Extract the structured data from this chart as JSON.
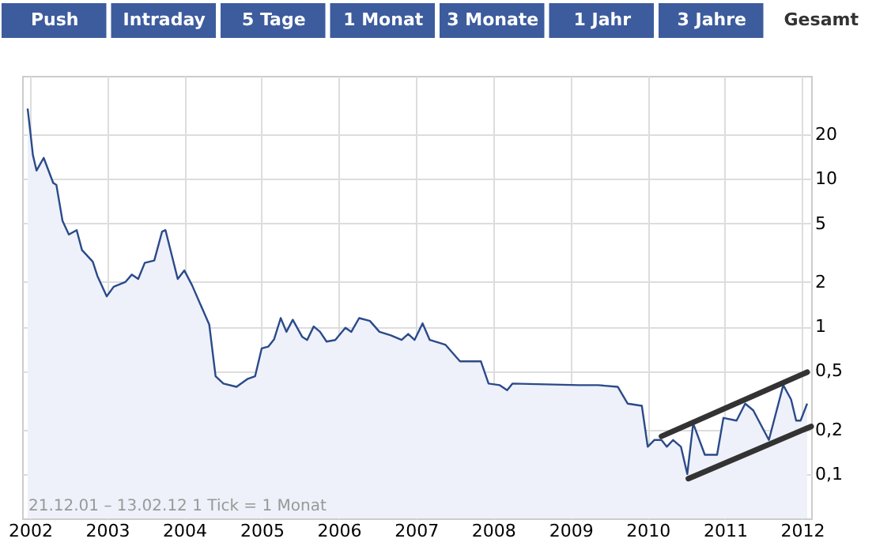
{
  "chart_data": {
    "type": "area",
    "log": "y",
    "grid": true,
    "xlim": [
      "2001-11-25",
      "2012-02-13"
    ],
    "xticks": [
      "2002",
      "2003",
      "2004",
      "2005",
      "2006",
      "2007",
      "2008",
      "2009",
      "2010",
      "2011",
      "2012"
    ],
    "ylim": [
      0.05,
      50
    ],
    "yticks": [
      {
        "value": 0.1,
        "label": "0,1"
      },
      {
        "value": 0.2,
        "label": "0,2"
      },
      {
        "value": 0.5,
        "label": "0,5"
      },
      1,
      2,
      5,
      10,
      20
    ],
    "annotations": [
      "Push",
      "Intraday",
      "5 Tage",
      "1 Monat",
      "3 Monate",
      "1 Jahr",
      "3 Jahre",
      "Gesamt",
      "21.12.01 – 13.02.12   1 Tick = 1 Monat"
    ],
    "series": [
      {
        "color": "#2b4a8a",
        "x": [
          "2001-12-21",
          "2002-01-01",
          "2002-01-15",
          "2002-02-01",
          "2002-03-07",
          "2002-04-21",
          "2002-05-06",
          "2002-06-04",
          "2002-07-04",
          "2002-08-10",
          "2002-09-04",
          "2002-10-25",
          "2002-11-16",
          "2002-12-30",
          "2003-02-01",
          "2003-03-28",
          "2003-04-28",
          "2003-05-28",
          "2003-06-28",
          "2003-08-12",
          "2003-09-18",
          "2003-10-04",
          "2003-12-01",
          "2004-01-01",
          "2004-02-07",
          "2004-04-28",
          "2004-05-28",
          "2004-07-04",
          "2004-09-04",
          "2004-10-25",
          "2004-12-01",
          "2005-01-01",
          "2005-02-01",
          "2005-03-01",
          "2005-04-01",
          "2005-04-28",
          "2005-05-28",
          "2005-07-12",
          "2005-08-04",
          "2005-09-04",
          "2005-10-04",
          "2005-11-04",
          "2005-12-15",
          "2006-02-01",
          "2006-03-01",
          "2006-04-07",
          "2006-05-28",
          "2006-07-12",
          "2006-09-04",
          "2006-10-25",
          "2006-11-25",
          "2006-12-25",
          "2007-02-01",
          "2007-03-07",
          "2007-04-28",
          "2007-05-21",
          "2007-07-28",
          "2007-11-04",
          "2007-12-10",
          "2008-02-01",
          "2008-03-07",
          "2008-04-01",
          "2009-02-10",
          "2009-05-12",
          "2009-08-12",
          "2009-09-28",
          "2009-12-04",
          "2010-01-01",
          "2010-02-01",
          "2010-03-07",
          "2010-04-01",
          "2010-05-01",
          "2010-06-07",
          "2010-07-07",
          "2010-08-04",
          "2010-09-28",
          "2010-11-25",
          "2010-12-25",
          "2011-02-25",
          "2011-04-07",
          "2011-05-15",
          "2011-07-28",
          "2011-10-04",
          "2011-11-10",
          "2011-12-04",
          "2011-12-25",
          "2012-01-25"
        ],
        "values": [
          30,
          22,
          14.5,
          11.4,
          13.9,
          9.4,
          9.1,
          5.2,
          4.2,
          4.5,
          3.3,
          2.75,
          2.2,
          1.6,
          1.86,
          2.0,
          2.25,
          2.1,
          2.7,
          2.8,
          4.4,
          4.5,
          2.1,
          2.4,
          1.9,
          1.03,
          0.46,
          0.41,
          0.39,
          0.44,
          0.46,
          0.71,
          0.73,
          0.82,
          1.14,
          0.92,
          1.11,
          0.85,
          0.81,
          1.0,
          0.92,
          0.79,
          0.81,
          0.98,
          0.92,
          1.14,
          1.09,
          0.92,
          0.87,
          0.81,
          0.89,
          0.81,
          1.05,
          0.81,
          0.77,
          0.75,
          0.58,
          0.58,
          0.41,
          0.4,
          0.37,
          0.41,
          0.4,
          0.4,
          0.39,
          0.3,
          0.29,
          0.153,
          0.17,
          0.17,
          0.153,
          0.17,
          0.153,
          0.1,
          0.22,
          0.135,
          0.135,
          0.24,
          0.23,
          0.3,
          0.27,
          0.17,
          0.4,
          0.32,
          0.23,
          0.23,
          0.3
        ]
      },
      {
        "type": "line",
        "color": "#333333",
        "x": [
          "2010-03-07",
          "2012-01-25"
        ],
        "values": [
          0.18,
          0.49
        ]
      },
      {
        "type": "line",
        "color": "#333333",
        "x": [
          "2010-07-12",
          "2012-02-13"
        ],
        "values": [
          0.093,
          0.21
        ]
      }
    ]
  }
}
